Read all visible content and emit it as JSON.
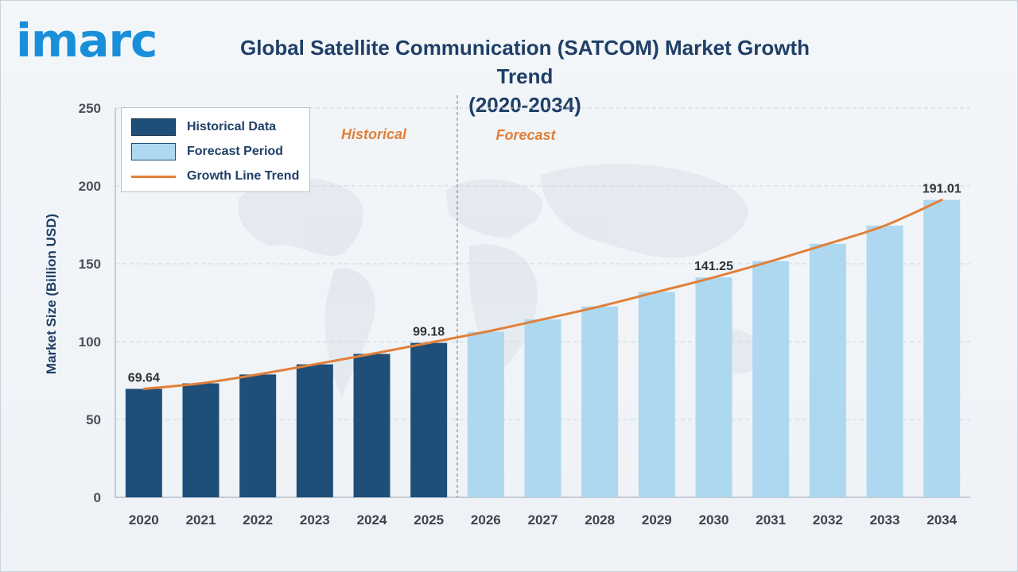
{
  "brand": {
    "logo_text": "imarc"
  },
  "chart_data": {
    "type": "bar",
    "title": "Global Satellite Communication (SATCOM) Market Growth Trend (2020-2034)",
    "title_lines": [
      "Global Satellite Communication (SATCOM) Market Growth Trend",
      "(2020-2034)"
    ],
    "ylabel": "Market Size (Billion USD)",
    "xlabel": "",
    "ylim": [
      0,
      250
    ],
    "yticks": [
      0,
      50,
      100,
      150,
      200,
      250
    ],
    "grid": true,
    "categories": [
      "2020",
      "2021",
      "2022",
      "2023",
      "2024",
      "2025",
      "2026",
      "2027",
      "2028",
      "2029",
      "2030",
      "2031",
      "2032",
      "2033",
      "2034"
    ],
    "values": [
      69.64,
      73.2,
      78.9,
      85.4,
      92.1,
      99.18,
      106.3,
      114.3,
      122.6,
      131.9,
      141.25,
      151.6,
      162.8,
      174.5,
      191.01
    ],
    "data_labels": {
      "0": "69.64",
      "5": "99.18",
      "10": "141.25",
      "14": "191.01"
    },
    "historical_count": 6,
    "region_labels": {
      "historical": "Historical",
      "forecast": "Forecast"
    },
    "legend": {
      "position": "top-left",
      "entries": [
        "Historical Data",
        "Forecast Period",
        "Growth Line Trend"
      ]
    },
    "colors": {
      "historical": "#1f4e79",
      "forecast": "#add8f0",
      "trend": "#e0803a",
      "title": "#1f3f66",
      "brand": "#1a8fd9"
    }
  }
}
